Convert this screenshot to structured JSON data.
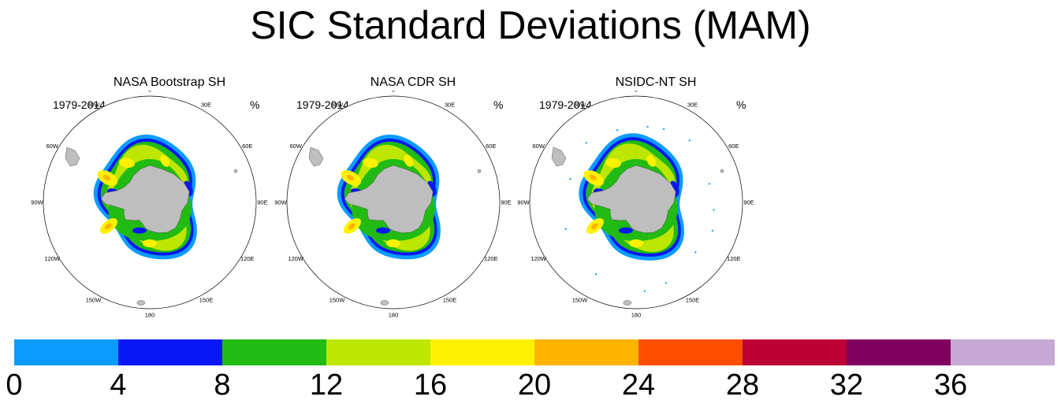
{
  "title": "SIC Standard Deviations (MAM)",
  "panels": [
    {
      "title": "NASA Bootstrap SH",
      "years": "1979-2014",
      "units": "%",
      "variant": "bootstrap"
    },
    {
      "title": "NASA CDR SH",
      "years": "1979-2014",
      "units": "%",
      "variant": "cdr"
    },
    {
      "title": "NSIDC-NT SH",
      "years": "1979-2014",
      "units": "%",
      "variant": "nt"
    }
  ],
  "longitude_labels": [
    "0",
    "30E",
    "60E",
    "90E",
    "120E",
    "150E",
    "180",
    "150W",
    "120W",
    "90W",
    "60W",
    "30W"
  ],
  "colorbar": {
    "colors": [
      "#0c9cff",
      "#0a17f5",
      "#21bb13",
      "#bde602",
      "#fff200",
      "#ffb400",
      "#ff4e00",
      "#bd0035",
      "#7f005f",
      "#c6a9d4"
    ],
    "tick_labels": [
      "0",
      "4",
      "8",
      "12",
      "16",
      "20",
      "24",
      "28",
      "32",
      "36"
    ]
  },
  "map_colors": {
    "land": "#bebebe",
    "land_outline": "#555555",
    "ocean": "#ffffff",
    "circle": "#000000"
  }
}
